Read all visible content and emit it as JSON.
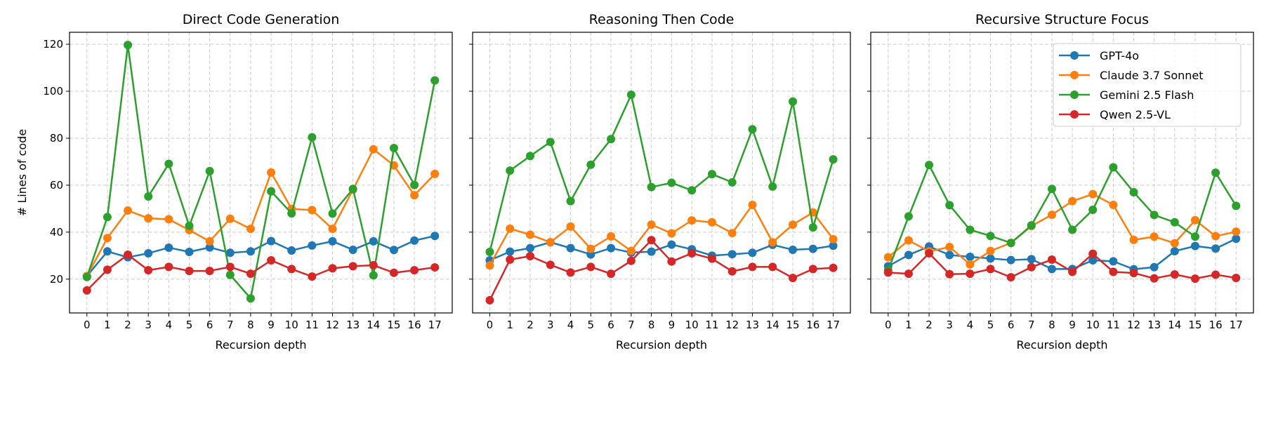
{
  "chart_data": [
    {
      "type": "line",
      "title": "Direct Code Generation",
      "xlabel": "Recursion depth",
      "ylabel": "# Lines of code",
      "x": [
        0,
        1,
        2,
        3,
        4,
        5,
        6,
        7,
        8,
        9,
        10,
        11,
        12,
        13,
        14,
        15,
        16,
        17
      ],
      "ylim": [
        5.6,
        125.1
      ],
      "yticks": [
        20,
        40,
        60,
        80,
        100,
        120
      ],
      "grid": true,
      "series": [
        {
          "name": "GPT-4o",
          "color": "#1f77b4",
          "values": [
            21.3,
            31.8,
            29.3,
            31.0,
            33.4,
            31.6,
            33.5,
            31.2,
            31.8,
            36.2,
            32.2,
            34.3,
            36.1,
            32.5,
            36.1,
            32.4,
            36.4,
            38.4
          ]
        },
        {
          "name": "Claude 3.7 Sonnet",
          "color": "#ff7f0e",
          "values": [
            21.3,
            37.5,
            49.2,
            45.9,
            45.5,
            40.9,
            36.1,
            45.7,
            41.4,
            65.4,
            49.9,
            49.4,
            41.4,
            58.1,
            75.3,
            68.4,
            55.7,
            64.8
          ]
        },
        {
          "name": "Gemini 2.5 Flash",
          "color": "#2ca02c",
          "values": [
            20.9,
            46.4,
            119.7,
            55.2,
            69.1,
            42.7,
            66.0,
            21.8,
            11.8,
            57.4,
            48.0,
            80.4,
            47.9,
            58.4,
            21.6,
            75.8,
            60.1,
            104.6
          ]
        },
        {
          "name": "Qwen 2.5-VL",
          "color": "#d62728",
          "values": [
            15.2,
            24.0,
            30.4,
            23.8,
            25.2,
            23.5,
            23.5,
            25.2,
            22.3,
            28.0,
            24.3,
            21.1,
            24.6,
            25.5,
            25.9,
            22.7,
            23.8,
            25.0
          ]
        }
      ]
    },
    {
      "type": "line",
      "title": "Reasoning Then Code",
      "xlabel": "Recursion depth",
      "x": [
        0,
        1,
        2,
        3,
        4,
        5,
        6,
        7,
        8,
        9,
        10,
        11,
        12,
        13,
        14,
        15,
        16,
        17
      ],
      "ylim": [
        5.6,
        125.1
      ],
      "yticks": [
        20,
        40,
        60,
        80,
        100,
        120
      ],
      "grid": true,
      "series": [
        {
          "name": "GPT-4o",
          "color": "#1f77b4",
          "values": [
            28.0,
            31.7,
            33.2,
            35.7,
            33.2,
            30.5,
            33.2,
            31.3,
            31.7,
            34.7,
            32.7,
            30.0,
            30.6,
            31.2,
            34.6,
            32.5,
            32.9,
            34.2
          ]
        },
        {
          "name": "Claude 3.7 Sonnet",
          "color": "#ff7f0e",
          "values": [
            25.8,
            41.5,
            38.9,
            35.7,
            42.4,
            32.9,
            38.2,
            32.0,
            43.2,
            39.5,
            45.0,
            44.2,
            39.6,
            51.6,
            35.7,
            43.2,
            48.4,
            37.0
          ]
        },
        {
          "name": "Gemini 2.5 Flash",
          "color": "#2ca02c",
          "values": [
            31.6,
            66.2,
            72.4,
            78.4,
            53.2,
            68.7,
            79.6,
            98.5,
            59.2,
            61.0,
            57.8,
            64.7,
            61.2,
            83.8,
            59.4,
            95.6,
            42.0,
            71.0
          ]
        },
        {
          "name": "Qwen 2.5-VL",
          "color": "#d62728",
          "values": [
            11.0,
            28.3,
            29.8,
            26.1,
            22.8,
            25.2,
            22.3,
            27.8,
            36.6,
            27.5,
            31.0,
            28.7,
            23.3,
            25.2,
            25.2,
            20.5,
            24.3,
            24.8
          ]
        }
      ]
    },
    {
      "type": "line",
      "title": "Recursive Structure Focus",
      "xlabel": "Recursion depth",
      "x": [
        0,
        1,
        2,
        3,
        4,
        5,
        6,
        7,
        8,
        9,
        10,
        11,
        12,
        13,
        14,
        15,
        16,
        17
      ],
      "ylim": [
        5.6,
        125.1
      ],
      "yticks": [
        20,
        40,
        60,
        80,
        100,
        120
      ],
      "grid": true,
      "legend": "top-right",
      "series": [
        {
          "name": "GPT-4o",
          "color": "#1f77b4",
          "values": [
            25.5,
            30.3,
            33.9,
            30.3,
            29.5,
            28.8,
            28.1,
            28.5,
            24.3,
            24.3,
            28.0,
            27.6,
            24.2,
            25.1,
            31.9,
            34.1,
            33.0,
            37.2
          ]
        },
        {
          "name": "Claude 3.7 Sonnet",
          "color": "#ff7f0e",
          "values": [
            29.3,
            36.5,
            31.8,
            33.7,
            26.3,
            32.0,
            35.4,
            42.6,
            47.4,
            53.2,
            56.2,
            51.6,
            36.7,
            38.1,
            35.3,
            45.1,
            38.3,
            40.2
          ]
        },
        {
          "name": "Gemini 2.5 Flash",
          "color": "#2ca02c",
          "values": [
            23.8,
            46.7,
            68.6,
            51.5,
            41.0,
            38.4,
            35.4,
            42.9,
            58.4,
            41.0,
            49.5,
            67.6,
            57.0,
            47.3,
            44.2,
            38.1,
            65.3,
            51.2
          ]
        },
        {
          "name": "Qwen 2.5-VL",
          "color": "#d62728",
          "values": [
            22.8,
            22.3,
            31.0,
            22.1,
            22.3,
            24.3,
            20.8,
            25.1,
            28.3,
            23.1,
            30.8,
            23.1,
            22.6,
            20.3,
            22.0,
            20.2,
            21.9,
            20.5
          ]
        }
      ]
    }
  ]
}
